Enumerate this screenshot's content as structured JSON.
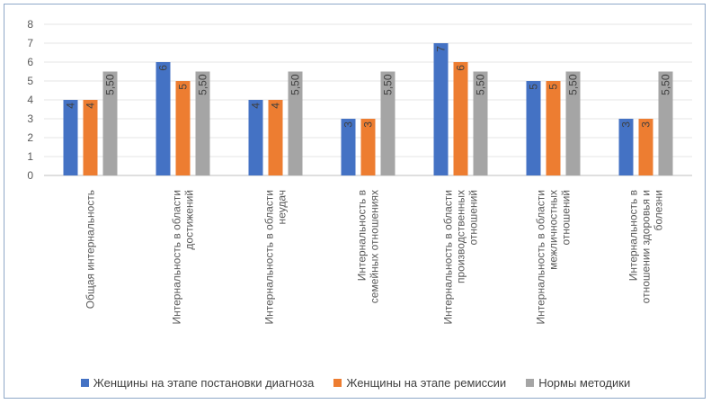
{
  "chart_data": {
    "type": "bar",
    "title": "",
    "xlabel": "",
    "ylabel": "",
    "ylim": [
      0,
      8
    ],
    "yticks": [
      "0",
      "1",
      "2",
      "3",
      "4",
      "5",
      "6",
      "7",
      "8"
    ],
    "categories": [
      [
        "Общая интернальность"
      ],
      [
        "Интернальность в области",
        "достижений"
      ],
      [
        "Интернальность в области",
        "неудач"
      ],
      [
        "Интернальность в",
        "семейных отношениях"
      ],
      [
        "Интернальность в области",
        "производственных",
        "отношений"
      ],
      [
        "Интернальность в области",
        "межличностных",
        "отношений"
      ],
      [
        "Интернальность в",
        "отношении здоровья и",
        "болезни"
      ]
    ],
    "series": [
      {
        "name": "Женщины на этапе постановки диагноза",
        "color": "#4472c4",
        "values": [
          4,
          6,
          4,
          3,
          7,
          5,
          3
        ],
        "labels": [
          "4",
          "6",
          "4",
          "3",
          "7",
          "5",
          "3"
        ]
      },
      {
        "name": "Женщины на этапе ремиссии",
        "color": "#ed7d31",
        "values": [
          4,
          5,
          4,
          3,
          6,
          5,
          3
        ],
        "labels": [
          "4",
          "5",
          "4",
          "3",
          "6",
          "5",
          "3"
        ]
      },
      {
        "name": "Нормы методики",
        "color": "#a5a5a5",
        "values": [
          5.5,
          5.5,
          5.5,
          5.5,
          5.5,
          5.5,
          5.5
        ],
        "labels": [
          "5,50",
          "5,50",
          "5,50",
          "5,50",
          "5,50",
          "5,50",
          "5,50"
        ]
      }
    ],
    "gridlines": true,
    "legend_position": "bottom"
  }
}
